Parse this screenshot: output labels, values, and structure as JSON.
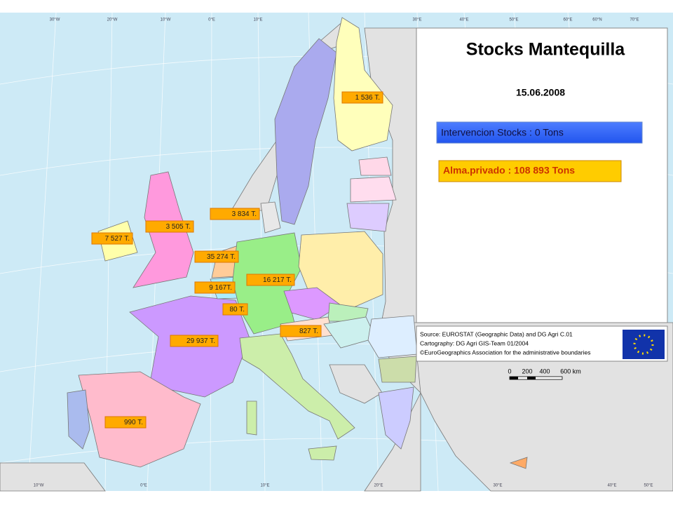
{
  "title": "Stocks Mantequilla",
  "date": "15.06.2008",
  "intervention": "Intervencion Stocks :  0 Tons",
  "private": "Alma.privado : 108 893 Tons",
  "map_labels": [
    "1 536 T.",
    "3 834 T.",
    "3 505 T.",
    "7 527 T.",
    "35 274 T.",
    "16 217 T.",
    "9 167T.",
    "80 T.",
    "827 T.",
    "29 937 T.",
    "990 T."
  ],
  "source_lines": [
    "Source: EUROSTAT (Geographic Data) and DG Agri C.01",
    "Cartography: DG Agri GIS-Team 01/2004",
    "©EuroGeographics Association for the administrative boundaries"
  ],
  "scale_labels": [
    "0",
    "200",
    "400",
    "600 km"
  ],
  "graticule_top": [
    "30°W",
    "20°W",
    "10°W",
    "0°E",
    "10°E",
    "30°E",
    "40°E",
    "50°E",
    "60°E",
    "60°N",
    "70°E"
  ],
  "graticule_bottom": [
    "10°W",
    "0°E",
    "10°E",
    "20°E",
    "30°E",
    "40°E",
    "50°E"
  ]
}
